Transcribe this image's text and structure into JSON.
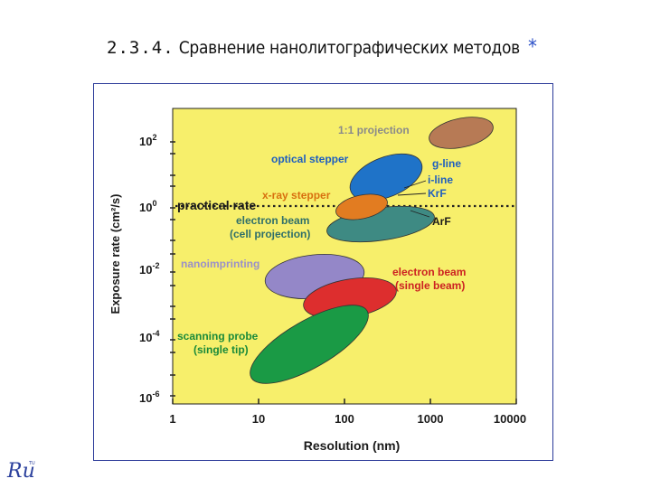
{
  "slide": {
    "number": "2.3.4.",
    "title": "Сравнение нанолитографических методов",
    "star": "*"
  },
  "logo": {
    "text": "Ru",
    "small": "TU"
  },
  "chart_data": {
    "type": "diagram",
    "xlabel": "Resolution (nm)",
    "ylabel": "Exposure rate (cm²/s)",
    "x_scale": "log",
    "y_scale": "log",
    "xlim": [
      1,
      10000
    ],
    "ylim": [
      1e-06,
      1000
    ],
    "x_ticks": [
      "1",
      "10",
      "100",
      "1000",
      "10000"
    ],
    "y_ticks": [
      {
        "base": "10",
        "exp": "2"
      },
      {
        "base": "10",
        "exp": "0"
      },
      {
        "base": "10",
        "exp": "-2"
      },
      {
        "base": "10",
        "exp": "-4"
      },
      {
        "base": "10",
        "exp": "-6"
      }
    ],
    "practical_rate": {
      "label": "practical rate",
      "y": 1
    },
    "colors": {
      "background": "#f7ef6b",
      "one_to_one": "#b77a55",
      "optical": "#1f73c8",
      "xray": "#e27c21",
      "ebeam_cell": "#3e8a83",
      "nanoimprint": "#9487c8",
      "ebeam_single": "#dd2e2e",
      "scanning_probe": "#1a9a45"
    },
    "regions": [
      {
        "key": "one_to_one",
        "name": "1:1 projection"
      },
      {
        "key": "optical",
        "name": "optical stepper"
      },
      {
        "key": "xray",
        "name": "x-ray stepper"
      },
      {
        "key": "ebeam_cell",
        "name": "electron beam",
        "name2": "(cell projection)"
      },
      {
        "key": "nanoimprint",
        "name": "nanoimprinting"
      },
      {
        "key": "ebeam_single",
        "name": "electron beam",
        "name2": "(single beam)"
      },
      {
        "key": "scanning_probe",
        "name": "scanning probe",
        "name2": "(single tip)"
      }
    ],
    "lines": [
      "g-line",
      "i-line",
      "KrF",
      "ArF"
    ]
  }
}
